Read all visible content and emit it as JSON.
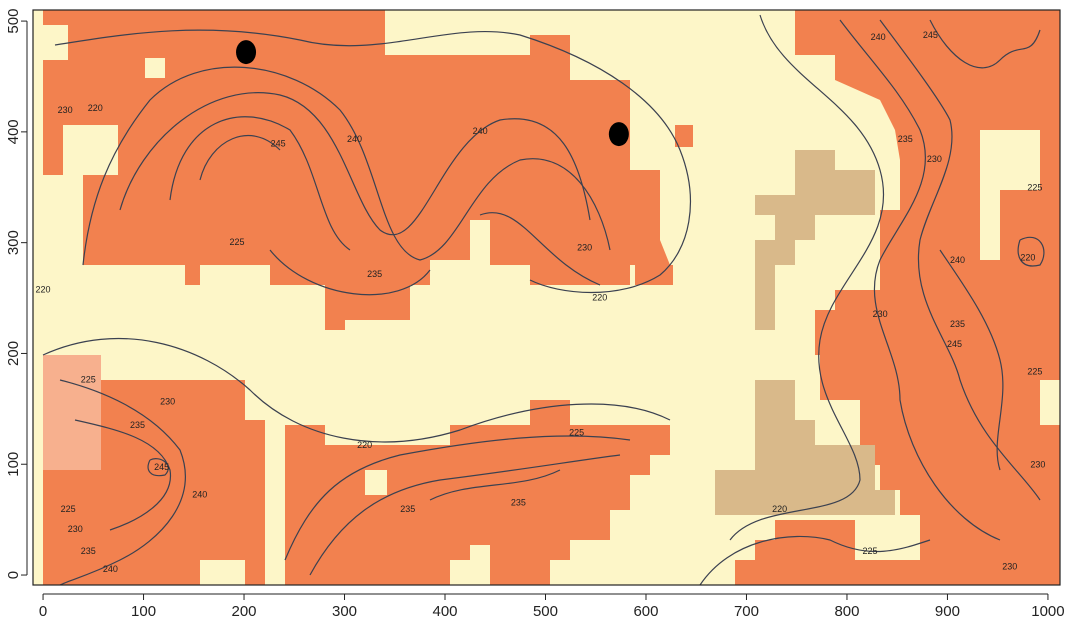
{
  "chart_data": {
    "type": "raster",
    "xlim": [
      -10,
      1012
    ],
    "ylim": [
      -9,
      510
    ],
    "xticks": [
      0,
      100,
      200,
      300,
      400,
      500,
      600,
      700,
      800,
      900,
      1000
    ],
    "yticks": [
      0,
      100,
      200,
      300,
      400,
      500
    ],
    "points": {
      "x": [
        202,
        573
      ],
      "y": [
        472,
        398
      ],
      "color": "#000000"
    },
    "contour_labels": [
      {
        "label": 245,
        "x": 234,
        "y": 389
      },
      {
        "label": 240,
        "x": 310,
        "y": 393
      },
      {
        "label": 240,
        "x": 435,
        "y": 400
      },
      {
        "label": 235,
        "x": 330,
        "y": 271
      },
      {
        "label": 230,
        "x": 539,
        "y": 295
      },
      {
        "label": 220,
        "x": 554,
        "y": 250
      },
      {
        "label": 225,
        "x": 193,
        "y": 300
      },
      {
        "label": 220,
        "x": 0,
        "y": 257
      },
      {
        "label": 230,
        "x": 22,
        "y": 419
      },
      {
        "label": 220,
        "x": 52,
        "y": 421
      },
      {
        "label": 240,
        "x": 831,
        "y": 485
      },
      {
        "label": 245,
        "x": 883,
        "y": 487
      },
      {
        "label": 235,
        "x": 858,
        "y": 393
      },
      {
        "label": 230,
        "x": 887,
        "y": 375
      },
      {
        "label": 225,
        "x": 987,
        "y": 349
      },
      {
        "label": 220,
        "x": 980,
        "y": 286
      },
      {
        "label": 240,
        "x": 910,
        "y": 284
      },
      {
        "label": 230,
        "x": 833,
        "y": 235
      },
      {
        "label": 235,
        "x": 910,
        "y": 226
      },
      {
        "label": 245,
        "x": 907,
        "y": 208
      },
      {
        "label": 225,
        "x": 987,
        "y": 183
      },
      {
        "label": 230,
        "x": 990,
        "y": 99
      },
      {
        "label": 220,
        "x": 733,
        "y": 59
      },
      {
        "label": 225,
        "x": 823,
        "y": 21
      },
      {
        "label": 230,
        "x": 962,
        "y": 7
      },
      {
        "label": 225,
        "x": 45,
        "y": 176
      },
      {
        "label": 230,
        "x": 124,
        "y": 156
      },
      {
        "label": 235,
        "x": 94,
        "y": 135
      },
      {
        "label": 245,
        "x": 118,
        "y": 97
      },
      {
        "label": 240,
        "x": 156,
        "y": 72
      },
      {
        "label": 225,
        "x": 25,
        "y": 59
      },
      {
        "label": 230,
        "x": 32,
        "y": 41
      },
      {
        "label": 235,
        "x": 45,
        "y": 21
      },
      {
        "label": 240,
        "x": 67,
        "y": 5
      },
      {
        "label": 220,
        "x": 320,
        "y": 117
      },
      {
        "label": 225,
        "x": 531,
        "y": 128
      },
      {
        "label": 235,
        "x": 473,
        "y": 65
      },
      {
        "label": 235,
        "x": 363,
        "y": 59
      }
    ]
  }
}
